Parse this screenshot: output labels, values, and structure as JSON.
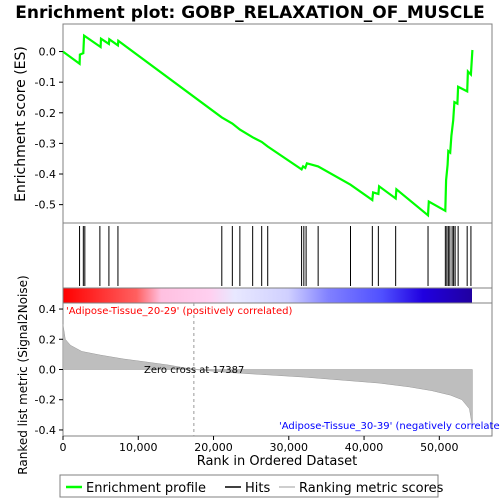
{
  "title": "Enrichment plot: GOBP_RELAXATION_OF_MUSCLE",
  "colors": {
    "profile": "#00ff00",
    "hits": "#000000",
    "metric_fill": "#bebebe",
    "axis": "#000000",
    "frame": "#808080",
    "pos_label": "#ff0000",
    "neg_label": "#0000ff"
  },
  "chart_data": [
    {
      "type": "line",
      "name": "enrichment-profile",
      "ylabel": "Enrichment score (ES)",
      "ylim": [
        -0.56,
        0.09
      ],
      "yticks": [
        "0.0",
        "-0.1",
        "-0.2",
        "-0.3",
        "-0.4",
        "-0.5"
      ],
      "ytick_values": [
        0.0,
        -0.1,
        -0.2,
        -0.3,
        -0.4,
        -0.5
      ],
      "xlim": [
        0,
        57000
      ],
      "series": [
        {
          "x": [
            0,
            2200,
            2250,
            2700,
            2800,
            5000,
            5050,
            6100,
            6150,
            7300,
            7350,
            21100,
            22500,
            23500,
            25200,
            26400,
            27200,
            31700,
            31900,
            32200,
            32400,
            33900,
            38200,
            41100,
            41200,
            41900,
            42000,
            44200,
            44300,
            48500,
            48600,
            50800,
            50900,
            51100,
            51200,
            51450,
            51600,
            51850,
            52000,
            52400,
            52500,
            53700,
            53800,
            54200,
            54400
          ],
          "values": [
            0.0,
            -0.04,
            -0.01,
            -0.005,
            0.052,
            0.015,
            0.042,
            0.025,
            0.04,
            0.02,
            0.035,
            -0.215,
            -0.235,
            -0.255,
            -0.28,
            -0.295,
            -0.31,
            -0.385,
            -0.375,
            -0.38,
            -0.365,
            -0.375,
            -0.435,
            -0.485,
            -0.46,
            -0.465,
            -0.44,
            -0.48,
            -0.45,
            -0.535,
            -0.49,
            -0.52,
            -0.42,
            -0.37,
            -0.325,
            -0.33,
            -0.275,
            -0.225,
            -0.165,
            -0.17,
            -0.115,
            -0.13,
            -0.065,
            -0.075,
            0.005
          ]
        }
      ]
    },
    {
      "type": "scatter",
      "name": "hits",
      "x": [
        2200,
        2700,
        2900,
        4900,
        6100,
        7300,
        21100,
        22500,
        23500,
        25200,
        26400,
        27200,
        31700,
        32000,
        32300,
        33900,
        38200,
        41100,
        41900,
        44200,
        48500,
        50800,
        51000,
        51200,
        51400,
        51700,
        51900,
        52100,
        52500,
        53700,
        54200
      ]
    },
    {
      "type": "heatmap",
      "name": "rank-colorbar",
      "labels": [
        "'Adipose-Tissue_20-29' (positively correlated)",
        "'Adipose-Tissue_30-39' (negatively correlated)"
      ]
    },
    {
      "type": "area",
      "name": "ranked-list-metric",
      "xlabel": "Rank in Ordered Dataset",
      "ylabel": "Ranked list metric (Signal2Noise)",
      "ylim": [
        -0.44,
        0.44
      ],
      "yticks": [
        "0.4",
        "0.2",
        "0.0",
        "-0.2",
        "-0.4"
      ],
      "ytick_values": [
        0.4,
        0.2,
        0.0,
        -0.2,
        -0.4
      ],
      "xlim": [
        0,
        57000
      ],
      "xticks": [
        "0",
        "10,000",
        "20,000",
        "30,000",
        "40,000",
        "50,000"
      ],
      "xtick_values": [
        0,
        10000,
        20000,
        30000,
        40000,
        50000
      ],
      "zero_cross_label": "Zero cross at 17387",
      "zero_cross": 17387,
      "x": [
        0,
        300,
        1000,
        2500,
        5000,
        8000,
        11000,
        14000,
        17387,
        22000,
        27000,
        32000,
        37000,
        42000,
        46000,
        49000,
        51500,
        53000,
        54000,
        54400
      ],
      "values": [
        0.3,
        0.2,
        0.16,
        0.12,
        0.095,
        0.07,
        0.05,
        0.03,
        0.0,
        -0.02,
        -0.035,
        -0.05,
        -0.07,
        -0.09,
        -0.115,
        -0.14,
        -0.17,
        -0.2,
        -0.26,
        -0.38
      ]
    }
  ],
  "legend": {
    "items": [
      {
        "label": "Enrichment profile",
        "kind": "line",
        "color": "#00ff00"
      },
      {
        "label": "Hits",
        "kind": "line",
        "color": "#000000"
      },
      {
        "label": "Ranking metric scores",
        "kind": "line",
        "color": "#bebebe"
      }
    ]
  }
}
